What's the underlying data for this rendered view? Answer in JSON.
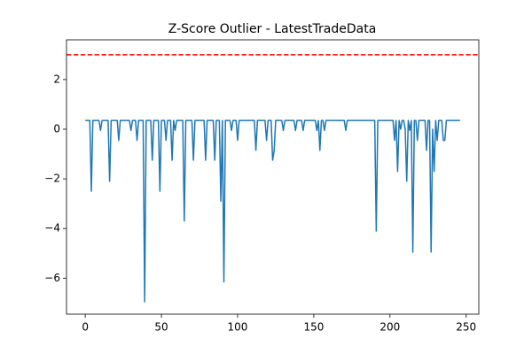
{
  "chart_data": {
    "type": "line",
    "title": "Z-Score Outlier - LatestTradeData",
    "x": [
      0,
      1,
      2,
      3,
      4,
      5,
      6,
      7,
      8,
      9,
      10,
      11,
      12,
      13,
      14,
      15,
      16,
      17,
      18,
      19,
      20,
      21,
      22,
      23,
      24,
      25,
      26,
      27,
      28,
      29,
      30,
      31,
      32,
      33,
      34,
      35,
      36,
      37,
      38,
      39,
      40,
      41,
      42,
      43,
      44,
      45,
      46,
      47,
      48,
      49,
      50,
      51,
      52,
      53,
      54,
      55,
      56,
      57,
      58,
      59,
      60,
      61,
      62,
      63,
      64,
      65,
      66,
      67,
      68,
      69,
      70,
      71,
      72,
      73,
      74,
      75,
      76,
      77,
      78,
      79,
      80,
      81,
      82,
      83,
      84,
      85,
      86,
      87,
      88,
      89,
      90,
      91,
      92,
      93,
      94,
      95,
      96,
      97,
      98,
      99,
      100,
      101,
      102,
      103,
      104,
      105,
      106,
      107,
      108,
      109,
      110,
      111,
      112,
      113,
      114,
      115,
      116,
      117,
      118,
      119,
      120,
      121,
      122,
      123,
      124,
      125,
      126,
      127,
      128,
      129,
      130,
      131,
      132,
      133,
      134,
      135,
      136,
      137,
      138,
      139,
      140,
      141,
      142,
      143,
      144,
      145,
      146,
      147,
      148,
      149,
      150,
      151,
      152,
      153,
      154,
      155,
      156,
      157,
      158,
      159,
      160,
      161,
      162,
      163,
      164,
      165,
      166,
      167,
      168,
      169,
      170,
      171,
      172,
      173,
      174,
      175,
      176,
      177,
      178,
      179,
      180,
      181,
      182,
      183,
      184,
      185,
      186,
      187,
      188,
      189,
      190,
      191,
      192,
      193,
      194,
      195,
      196,
      197,
      198,
      199,
      200,
      201,
      202,
      203,
      204,
      205,
      206,
      207,
      208,
      209,
      210,
      211,
      212,
      213,
      214,
      215,
      216,
      217,
      218,
      219,
      220,
      221,
      222,
      223,
      224,
      225,
      226,
      227,
      228,
      229,
      230,
      231,
      232,
      233,
      234,
      235,
      236,
      237,
      238,
      239,
      240,
      241,
      242,
      243,
      244,
      245,
      246
    ],
    "series": [
      {
        "color": "#1f77b4",
        "values": [
          0.35,
          0.35,
          0.35,
          0.35,
          -2.5,
          0.35,
          0.35,
          0.35,
          0.35,
          0.35,
          -0.05,
          0.35,
          0.35,
          0.35,
          0.35,
          0.35,
          -2.1,
          0.35,
          0.35,
          0.35,
          0.35,
          0.35,
          -0.45,
          0.35,
          0.35,
          0.35,
          0.35,
          0.35,
          0.35,
          0.35,
          -0.05,
          0.35,
          0.35,
          0.35,
          -0.45,
          0.35,
          0.35,
          0.35,
          0.35,
          -6.95,
          0.35,
          0.35,
          0.35,
          0.35,
          -1.25,
          0.35,
          0.35,
          0.35,
          0.35,
          -2.5,
          0.35,
          0.35,
          0.35,
          -0.45,
          0.35,
          0.35,
          0.35,
          -1.25,
          0.35,
          -0.05,
          0.35,
          0.35,
          0.35,
          0.35,
          0.35,
          -3.7,
          0.35,
          0.35,
          0.35,
          0.35,
          0.35,
          -1.25,
          0.35,
          0.35,
          0.35,
          0.35,
          0.35,
          0.35,
          0.35,
          -1.25,
          0.35,
          0.35,
          0.35,
          0.35,
          0.35,
          -1.25,
          0.35,
          0.35,
          0.35,
          -2.9,
          0.35,
          -6.15,
          0.35,
          0.35,
          0.35,
          0.35,
          -0.05,
          0.35,
          0.35,
          0.35,
          -0.45,
          0.35,
          0.35,
          0.35,
          0.35,
          0.35,
          0.35,
          0.35,
          0.35,
          0.35,
          0.35,
          0.35,
          -0.85,
          0.35,
          0.35,
          0.35,
          0.35,
          0.35,
          0.35,
          -0.45,
          0.35,
          0.35,
          0.35,
          -1.25,
          -0.85,
          0.35,
          0.35,
          0.35,
          0.35,
          0.35,
          -0.05,
          0.35,
          0.35,
          0.35,
          0.35,
          0.35,
          0.35,
          0.35,
          -0.05,
          0.35,
          0.35,
          0.35,
          0.35,
          -0.05,
          0.35,
          0.35,
          0.35,
          0.35,
          0.35,
          0.35,
          0.35,
          0.35,
          -0.05,
          0.35,
          -0.85,
          0.35,
          0.35,
          -0.05,
          0.35,
          0.35,
          0.35,
          0.35,
          0.35,
          0.35,
          0.35,
          0.35,
          0.35,
          0.35,
          0.35,
          0.35,
          0.35,
          -0.05,
          0.35,
          0.35,
          0.35,
          0.35,
          0.35,
          0.35,
          0.35,
          0.35,
          0.35,
          0.35,
          0.35,
          0.35,
          0.35,
          0.35,
          0.35,
          0.35,
          0.35,
          0.35,
          0.35,
          -4.1,
          0.35,
          0.35,
          0.35,
          0.35,
          0.35,
          0.35,
          0.35,
          0.35,
          0.35,
          0.35,
          0.35,
          -0.45,
          0.35,
          -1.7,
          0.35,
          0,
          0.35,
          0.35,
          0,
          -2.1,
          0.35,
          -0.05,
          0.35,
          -4.95,
          0.35,
          0.35,
          -0.45,
          0.35,
          0.35,
          0.35,
          0.35,
          0.35,
          -0.85,
          0.35,
          0.35,
          -4.95,
          0,
          -1.7,
          0.35,
          -0.45,
          0.35,
          0.35,
          0.35,
          -0.45,
          -0.45,
          0.35,
          0.35,
          0.35,
          0.35,
          0.35,
          0.35,
          0.35,
          0.35,
          0.35,
          0.35
        ]
      }
    ],
    "axhline": {
      "y": 3,
      "color": "#ff0000",
      "dashed": true
    },
    "xlim": [
      -12.3,
      258.3
    ],
    "xticks": [
      0,
      50,
      100,
      150,
      200,
      250
    ],
    "ylim": [
      -7.45,
      3.6
    ],
    "yticks": [
      {
        "value": -6,
        "label": "−6"
      },
      {
        "value": -4,
        "label": "−4"
      },
      {
        "value": -2,
        "label": "−2"
      },
      0,
      2
    ]
  }
}
